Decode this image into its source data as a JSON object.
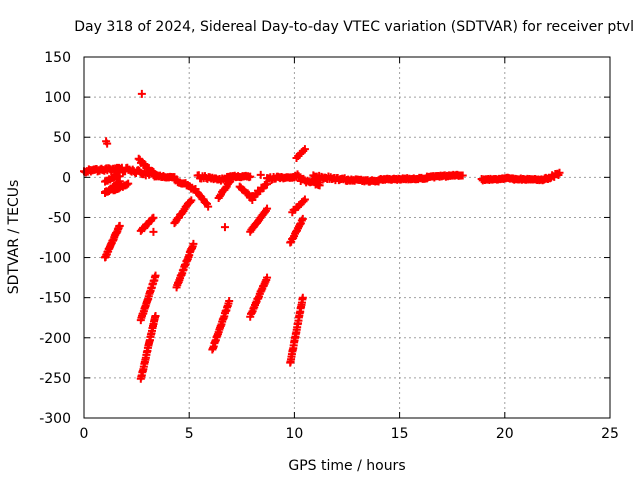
{
  "chart_data": {
    "type": "scatter",
    "title": "Day 318 of 2024, Sidereal Day-to-day VTEC variation (SDTVAR) for receiver ptvl",
    "xlabel": "GPS time / hours",
    "ylabel": "SDTVAR / TECUs",
    "xlim": [
      0,
      25
    ],
    "ylim": [
      -300,
      150
    ],
    "xticks": [
      0,
      5,
      10,
      15,
      20,
      25
    ],
    "yticks": [
      -300,
      -250,
      -200,
      -150,
      -100,
      -50,
      0,
      50,
      100,
      150
    ],
    "xtick_labels": [
      "0",
      "5",
      "10",
      "15",
      "20",
      "25"
    ],
    "ytick_labels": [
      "-300",
      "-250",
      "-200",
      "-150",
      "-100",
      "-50",
      "0",
      "50",
      "100",
      "150"
    ],
    "grid": true,
    "marker": "+",
    "color": "#ff0000",
    "segments": [
      {
        "x0": 0.0,
        "y0": 8,
        "x1": 1.8,
        "y1": 10,
        "n": 40,
        "jitter": 2
      },
      {
        "x0": 1.8,
        "y0": 10,
        "x1": 3.3,
        "y1": 4,
        "n": 30,
        "jitter": 3
      },
      {
        "x0": 3.3,
        "y0": 2,
        "x1": 4.3,
        "y1": 0,
        "n": 20,
        "jitter": 1
      },
      {
        "x0": 4.3,
        "y0": -2,
        "x1": 5.3,
        "y1": -15,
        "n": 20,
        "jitter": 2
      },
      {
        "x0": 5.3,
        "y0": -15,
        "x1": 5.9,
        "y1": -35,
        "n": 12,
        "jitter": 2
      },
      {
        "x0": 5.4,
        "y0": 1,
        "x1": 6.8,
        "y1": -3,
        "n": 25,
        "jitter": 2
      },
      {
        "x0": 6.8,
        "y0": 1,
        "x1": 7.9,
        "y1": 1,
        "n": 22,
        "jitter": 1
      },
      {
        "x0": 7.4,
        "y0": -13,
        "x1": 8.0,
        "y1": -27,
        "n": 12,
        "jitter": 2
      },
      {
        "x0": 8.0,
        "y0": -25,
        "x1": 8.7,
        "y1": -8,
        "n": 14,
        "jitter": 2
      },
      {
        "x0": 8.7,
        "y0": -2,
        "x1": 10.2,
        "y1": 2,
        "n": 30,
        "jitter": 2
      },
      {
        "x0": 10.3,
        "y0": -3,
        "x1": 11.2,
        "y1": -8,
        "n": 15,
        "jitter": 2
      },
      {
        "x0": 10.9,
        "y0": 1,
        "x1": 12.5,
        "y1": -3,
        "n": 30,
        "jitter": 2
      },
      {
        "x0": 12.5,
        "y0": -3,
        "x1": 14.0,
        "y1": -5,
        "n": 30,
        "jitter": 1
      },
      {
        "x0": 14.0,
        "y0": -3,
        "x1": 16.3,
        "y1": -1,
        "n": 45,
        "jitter": 1
      },
      {
        "x0": 16.3,
        "y0": 0,
        "x1": 18.0,
        "y1": 3,
        "n": 35,
        "jitter": 1
      },
      {
        "x0": 18.9,
        "y0": -3,
        "x1": 20.4,
        "y1": -1,
        "n": 30,
        "jitter": 1
      },
      {
        "x0": 20.4,
        "y0": -2,
        "x1": 21.9,
        "y1": -3,
        "n": 30,
        "jitter": 1
      },
      {
        "x0": 21.9,
        "y0": -2,
        "x1": 22.6,
        "y1": 5,
        "n": 15,
        "jitter": 2
      },
      {
        "x0": 1.0,
        "y0": -5,
        "x1": 1.7,
        "y1": 2,
        "n": 12,
        "jitter": 1
      },
      {
        "x0": 1.0,
        "y0": -18,
        "x1": 1.7,
        "y1": -12,
        "n": 12,
        "jitter": 1
      },
      {
        "x0": 1.0,
        "y0": -20,
        "x1": 1.7,
        "y1": -5,
        "n": 12,
        "jitter": 1
      },
      {
        "x0": 1.4,
        "y0": -16,
        "x1": 2.1,
        "y1": -8,
        "n": 12,
        "jitter": 1
      },
      {
        "x0": 2.6,
        "y0": 22,
        "x1": 3.3,
        "y1": 5,
        "n": 14,
        "jitter": 2
      },
      {
        "x0": 1.0,
        "y0": -100,
        "x1": 1.7,
        "y1": -60,
        "n": 25,
        "jitter": 1
      },
      {
        "x0": 2.7,
        "y0": -67,
        "x1": 3.3,
        "y1": -50,
        "n": 12,
        "jitter": 1
      },
      {
        "x0": 2.7,
        "y0": -178,
        "x1": 3.4,
        "y1": -123,
        "n": 25,
        "jitter": 1
      },
      {
        "x0": 2.7,
        "y0": -252,
        "x1": 3.4,
        "y1": -172,
        "n": 30,
        "jitter": 1
      },
      {
        "x0": 4.3,
        "y0": -57,
        "x1": 5.1,
        "y1": -28,
        "n": 16,
        "jitter": 1
      },
      {
        "x0": 4.4,
        "y0": -137,
        "x1": 5.2,
        "y1": -83,
        "n": 25,
        "jitter": 1
      },
      {
        "x0": 6.1,
        "y0": -215,
        "x1": 6.9,
        "y1": -155,
        "n": 25,
        "jitter": 1
      },
      {
        "x0": 6.4,
        "y0": -25,
        "x1": 7.0,
        "y1": -3,
        "n": 12,
        "jitter": 1
      },
      {
        "x0": 7.9,
        "y0": -68,
        "x1": 8.7,
        "y1": -40,
        "n": 16,
        "jitter": 1
      },
      {
        "x0": 7.9,
        "y0": -173,
        "x1": 8.7,
        "y1": -125,
        "n": 22,
        "jitter": 1
      },
      {
        "x0": 9.8,
        "y0": -82,
        "x1": 10.4,
        "y1": -52,
        "n": 14,
        "jitter": 1
      },
      {
        "x0": 9.9,
        "y0": -43,
        "x1": 10.5,
        "y1": -28,
        "n": 10,
        "jitter": 1
      },
      {
        "x0": 9.8,
        "y0": -232,
        "x1": 10.4,
        "y1": -150,
        "n": 30,
        "jitter": 1
      },
      {
        "x0": 10.1,
        "y0": 24,
        "x1": 10.5,
        "y1": 35,
        "n": 6,
        "jitter": 1
      }
    ],
    "isolated_points": [
      {
        "x": 2.75,
        "y": 104
      },
      {
        "x": 1.05,
        "y": 45
      },
      {
        "x": 1.1,
        "y": 42
      },
      {
        "x": 3.3,
        "y": -68
      },
      {
        "x": 6.7,
        "y": -62
      },
      {
        "x": 8.4,
        "y": 3
      },
      {
        "x": 11.2,
        "y": -10
      }
    ]
  }
}
